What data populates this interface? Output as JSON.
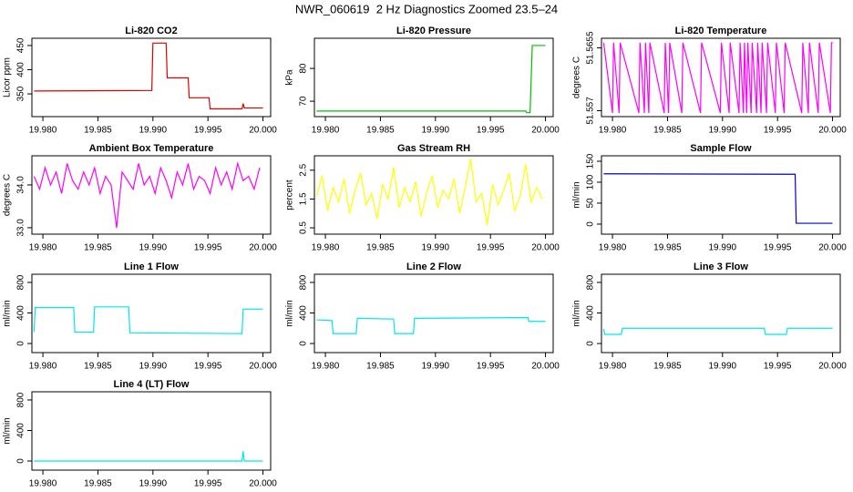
{
  "title": "NWR_060619  2 Hz Diagnostics Zoomed 23.5–24",
  "chart_data": [
    {
      "type": "line",
      "title": "Li-820 CO2",
      "ylabel": "Licor ppm",
      "color": "#e00000",
      "x": [
        19.9792,
        19.9899,
        19.99,
        19.9912,
        19.9913,
        19.9932,
        19.9933,
        19.9951,
        19.9952,
        19.9981,
        19.9982,
        19.9983,
        20.0
      ],
      "values": [
        356,
        357,
        455,
        455,
        383,
        383,
        342,
        342,
        319,
        319,
        330,
        321,
        321
      ],
      "xlim": [
        19.979,
        20.0007
      ],
      "xticks": [
        {
          "value": 19.98,
          "label": "19.980"
        },
        {
          "value": 19.985,
          "label": "19.985"
        },
        {
          "value": 19.99,
          "label": "19.990"
        },
        {
          "value": 19.995,
          "label": "19.995"
        },
        {
          "value": 20,
          "label": "20.000"
        }
      ],
      "ylim": [
        303,
        465
      ],
      "yticks": [
        350,
        400,
        450
      ]
    },
    {
      "type": "line",
      "title": "Li-820 Pressure",
      "ylabel": "kPa",
      "color": "#00c000",
      "x": [
        19.9792,
        19.9982,
        19.9983,
        19.9986,
        19.9988,
        20.0
      ],
      "values": [
        67,
        67,
        66.5,
        66.5,
        87,
        87
      ],
      "xlim": [
        19.979,
        20.0007
      ],
      "xticks": [
        {
          "value": 19.98,
          "label": "19.980"
        },
        {
          "value": 19.985,
          "label": "19.985"
        },
        {
          "value": 19.99,
          "label": "19.990"
        },
        {
          "value": 19.995,
          "label": "19.995"
        },
        {
          "value": 20,
          "label": "20.000"
        }
      ],
      "ylim": [
        65.3,
        89.2
      ],
      "yticks": [
        70,
        80
      ]
    },
    {
      "type": "line",
      "title": "Li-820 Temperature",
      "ylabel": "degrees C",
      "color": "#ff00ff",
      "x": [
        19.9792,
        19.98,
        19.9801,
        19.9806,
        19.9807,
        19.9824,
        19.9825,
        19.9829,
        19.983,
        19.9833,
        19.9834,
        19.9847,
        19.9848,
        19.9851,
        19.9852,
        19.9863,
        19.9864,
        19.988,
        19.9881,
        19.9898,
        19.9899,
        19.9906,
        19.9907,
        19.9915,
        19.9916,
        19.9919,
        19.992,
        19.9922,
        19.9923,
        19.9926,
        19.9927,
        19.9931,
        19.9932,
        19.9935,
        19.9936,
        19.994,
        19.9941,
        19.9948,
        19.9949,
        19.9956,
        19.9957,
        19.9972,
        19.9973,
        19.9978,
        19.9979,
        19.9987,
        19.9988,
        19.9998,
        19.9999,
        20.0
      ],
      "values": [
        51.5662,
        51.5567,
        51.5662,
        51.5567,
        51.5662,
        51.5567,
        51.5662,
        51.5567,
        51.5662,
        51.5567,
        51.5662,
        51.5567,
        51.5662,
        51.5567,
        51.5662,
        51.5567,
        51.5662,
        51.5567,
        51.5662,
        51.5567,
        51.5662,
        51.5567,
        51.5662,
        51.5567,
        51.5662,
        51.5567,
        51.5662,
        51.5567,
        51.5662,
        51.5567,
        51.5662,
        51.5567,
        51.5662,
        51.5567,
        51.5662,
        51.5567,
        51.5662,
        51.5567,
        51.5662,
        51.5567,
        51.5662,
        51.5567,
        51.5662,
        51.5567,
        51.5662,
        51.5567,
        51.5662,
        51.5567,
        51.5662,
        51.5662
      ],
      "xlim": [
        19.979,
        20.0007
      ],
      "xticks": [
        {
          "value": 19.98,
          "label": "19.980"
        },
        {
          "value": 19.985,
          "label": "19.985"
        },
        {
          "value": 19.99,
          "label": "19.990"
        },
        {
          "value": 19.995,
          "label": "19.995"
        },
        {
          "value": 20,
          "label": "20.000"
        }
      ],
      "ylim": [
        51.5562,
        51.5668
      ],
      "yticks": [
        51.557,
        51.5655
      ]
    },
    {
      "type": "line",
      "title": "Ambient Box Temperature",
      "ylabel": "degrees C",
      "color": "#ff00ff",
      "x": [
        19.9792,
        19.9797,
        19.9802,
        19.9807,
        19.9812,
        19.9817,
        19.9822,
        19.9827,
        19.9832,
        19.9837,
        19.9842,
        19.9847,
        19.9852,
        19.9857,
        19.9862,
        19.9867,
        19.9872,
        19.9877,
        19.9882,
        19.9887,
        19.9892,
        19.9897,
        19.9902,
        19.9907,
        19.9912,
        19.9917,
        19.9922,
        19.9927,
        19.9932,
        19.9937,
        19.9942,
        19.9947,
        19.9952,
        19.9957,
        19.9962,
        19.9967,
        19.9972,
        19.9977,
        19.9982,
        19.9987,
        19.9992,
        19.9997
      ],
      "values": [
        34.2,
        33.9,
        34.4,
        34.0,
        34.3,
        33.8,
        34.5,
        34.1,
        33.9,
        34.3,
        34.0,
        34.4,
        33.8,
        34.2,
        34.0,
        33.0,
        34.3,
        34.1,
        33.9,
        34.5,
        34.0,
        34.2,
        33.8,
        34.4,
        34.1,
        33.7,
        34.3,
        34.0,
        34.5,
        33.9,
        34.2,
        34.1,
        33.8,
        34.4,
        34.0,
        34.3,
        33.9,
        34.5,
        34.1,
        34.2,
        33.9,
        34.4
      ],
      "xlim": [
        19.979,
        20.0007
      ],
      "xticks": [
        {
          "value": 19.98,
          "label": "19.980"
        },
        {
          "value": 19.985,
          "label": "19.985"
        },
        {
          "value": 19.99,
          "label": "19.990"
        },
        {
          "value": 19.995,
          "label": "19.995"
        },
        {
          "value": 20,
          "label": "20.000"
        }
      ],
      "ylim": [
        32.85,
        34.68
      ],
      "yticks": [
        {
          "value": 33,
          "label": "33.0"
        },
        {
          "value": 34,
          "label": "34.0"
        }
      ]
    },
    {
      "type": "line",
      "title": "Gas Stream RH",
      "ylabel": "percent",
      "color": "#ffff00",
      "x": [
        19.9792,
        19.9797,
        19.9802,
        19.9807,
        19.9812,
        19.9817,
        19.9822,
        19.9827,
        19.9832,
        19.9837,
        19.9842,
        19.9847,
        19.9852,
        19.9857,
        19.9862,
        19.9867,
        19.9872,
        19.9877,
        19.9882,
        19.9887,
        19.9892,
        19.9897,
        19.9902,
        19.9907,
        19.9912,
        19.9917,
        19.9922,
        19.9927,
        19.9932,
        19.9937,
        19.9942,
        19.9947,
        19.9952,
        19.9957,
        19.9962,
        19.9967,
        19.9972,
        19.9977,
        19.9982,
        19.9987,
        19.9992,
        19.9997
      ],
      "values": [
        1.6,
        2.3,
        1.1,
        1.9,
        1.4,
        2.2,
        1.0,
        1.8,
        2.4,
        1.3,
        1.7,
        0.8,
        2.0,
        1.5,
        2.6,
        1.2,
        1.9,
        1.4,
        2.1,
        0.9,
        1.7,
        2.3,
        1.2,
        1.8,
        1.5,
        2.2,
        1.0,
        1.9,
        2.9,
        1.4,
        1.7,
        0.6,
        2.0,
        1.3,
        1.8,
        2.4,
        1.1,
        1.6,
        2.7,
        1.4,
        1.9,
        1.5
      ],
      "xlim": [
        19.979,
        20.0007
      ],
      "xticks": [
        {
          "value": 19.98,
          "label": "19.980"
        },
        {
          "value": 19.985,
          "label": "19.985"
        },
        {
          "value": 19.99,
          "label": "19.990"
        },
        {
          "value": 19.995,
          "label": "19.995"
        },
        {
          "value": 20,
          "label": "20.000"
        }
      ],
      "ylim": [
        0.28,
        3.0
      ],
      "yticks": [
        0.5,
        1.5,
        2.5
      ]
    },
    {
      "type": "line",
      "title": "Sample Flow",
      "ylabel": "ml/min",
      "color": "#0000cc",
      "x": [
        19.9792,
        19.9966,
        19.9967,
        20.0
      ],
      "values": [
        120,
        119,
        2,
        2
      ],
      "xlim": [
        19.979,
        20.0007
      ],
      "xticks": [
        {
          "value": 19.98,
          "label": "19.980"
        },
        {
          "value": 19.985,
          "label": "19.985"
        },
        {
          "value": 19.99,
          "label": "19.990"
        },
        {
          "value": 19.995,
          "label": "19.995"
        },
        {
          "value": 20,
          "label": "20.000"
        }
      ],
      "ylim": [
        -24,
        163
      ],
      "yticks": [
        0,
        50,
        100,
        150
      ]
    },
    {
      "type": "line",
      "title": "Line 1 Flow",
      "ylabel": "ml/min",
      "color": "#00e8e8",
      "x": [
        19.9792,
        19.9793,
        19.9828,
        19.9829,
        19.9846,
        19.9847,
        19.9878,
        19.9879,
        19.9981,
        19.9982,
        20.0
      ],
      "values": [
        150,
        470,
        470,
        150,
        150,
        480,
        480,
        140,
        130,
        450,
        450
      ],
      "xlim": [
        19.979,
        20.0007
      ],
      "xticks": [
        {
          "value": 19.98,
          "label": "19.980"
        },
        {
          "value": 19.985,
          "label": "19.985"
        },
        {
          "value": 19.99,
          "label": "19.990"
        },
        {
          "value": 19.995,
          "label": "19.995"
        },
        {
          "value": 20,
          "label": "20.000"
        }
      ],
      "ylim": [
        -119,
        907
      ],
      "yticks": [
        0,
        400,
        800
      ]
    },
    {
      "type": "line",
      "title": "Line 2 Flow",
      "ylabel": "ml/min",
      "color": "#00e8e8",
      "x": [
        19.9792,
        19.9806,
        19.9807,
        19.9828,
        19.9829,
        19.9862,
        19.9863,
        19.988,
        19.9881,
        19.9984,
        19.9985,
        20.0
      ],
      "values": [
        310,
        300,
        130,
        130,
        330,
        320,
        130,
        130,
        330,
        340,
        290,
        290
      ],
      "xlim": [
        19.979,
        20.0007
      ],
      "xticks": [
        {
          "value": 19.98,
          "label": "19.980"
        },
        {
          "value": 19.985,
          "label": "19.985"
        },
        {
          "value": 19.99,
          "label": "19.990"
        },
        {
          "value": 19.995,
          "label": "19.995"
        },
        {
          "value": 20,
          "label": "20.000"
        }
      ],
      "ylim": [
        -119,
        907
      ],
      "yticks": [
        0,
        400,
        800
      ]
    },
    {
      "type": "line",
      "title": "Line 3 Flow",
      "ylabel": "ml/min",
      "color": "#00e8e8",
      "x": [
        19.9792,
        19.9793,
        19.9808,
        19.9809,
        19.9938,
        19.9939,
        19.9958,
        19.9959,
        20.0
      ],
      "values": [
        190,
        120,
        120,
        200,
        200,
        120,
        120,
        200,
        200
      ],
      "xlim": [
        19.979,
        20.0007
      ],
      "xticks": [
        {
          "value": 19.98,
          "label": "19.980"
        },
        {
          "value": 19.985,
          "label": "19.985"
        },
        {
          "value": 19.99,
          "label": "19.990"
        },
        {
          "value": 19.995,
          "label": "19.995"
        },
        {
          "value": 20,
          "label": "20.000"
        }
      ],
      "ylim": [
        -119,
        907
      ],
      "yticks": [
        0,
        400,
        800
      ]
    },
    {
      "type": "line",
      "title": "Line 4 (LT) Flow",
      "ylabel": "ml/min",
      "color": "#00e8e8",
      "x": [
        19.9792,
        19.9981,
        19.9982,
        19.9983,
        20.0
      ],
      "values": [
        0,
        0,
        130,
        0,
        0
      ],
      "xlim": [
        19.979,
        20.0007
      ],
      "xticks": [
        {
          "value": 19.98,
          "label": "19.980"
        },
        {
          "value": 19.985,
          "label": "19.985"
        },
        {
          "value": 19.99,
          "label": "19.990"
        },
        {
          "value": 19.995,
          "label": "19.995"
        },
        {
          "value": 20,
          "label": "20.000"
        }
      ],
      "ylim": [
        -119,
        907
      ],
      "yticks": [
        0,
        400,
        800
      ]
    }
  ]
}
